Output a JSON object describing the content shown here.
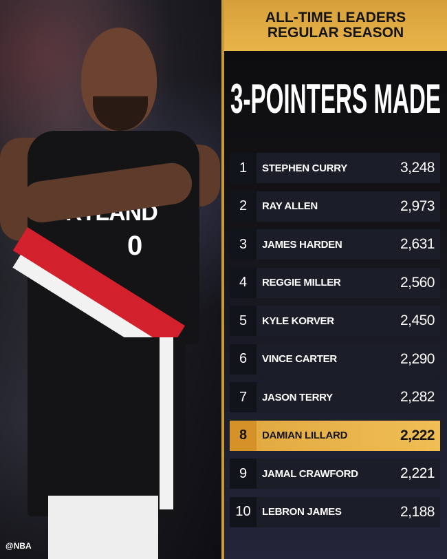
{
  "header": {
    "line1": "ALL-TIME LEADERS",
    "line2": "REGULAR SEASON"
  },
  "title": "3-POINTERS MADE",
  "photo": {
    "jersey_text": "RTLAND",
    "jersey_number": "0",
    "watermark": "@NBA"
  },
  "colors": {
    "gold": "#e8b54a",
    "panel": "#141418",
    "highlight": "#f0be55"
  },
  "leaders": [
    {
      "rank": "1",
      "name": "STEPHEN CURRY",
      "value": "3,248"
    },
    {
      "rank": "2",
      "name": "RAY ALLEN",
      "value": "2,973"
    },
    {
      "rank": "3",
      "name": "JAMES HARDEN",
      "value": "2,631"
    },
    {
      "rank": "4",
      "name": "REGGIE MILLER",
      "value": "2,560"
    },
    {
      "rank": "5",
      "name": "KYLE KORVER",
      "value": "2,450"
    },
    {
      "rank": "6",
      "name": "VINCE CARTER",
      "value": "2,290"
    },
    {
      "rank": "7",
      "name": "JASON TERRY",
      "value": "2,282"
    },
    {
      "rank": "8",
      "name": "DAMIAN LILLARD",
      "value": "2,222",
      "highlighted": true
    },
    {
      "rank": "9",
      "name": "JAMAL CRAWFORD",
      "value": "2,221"
    },
    {
      "rank": "10",
      "name": "LEBRON JAMES",
      "value": "2,188"
    }
  ]
}
